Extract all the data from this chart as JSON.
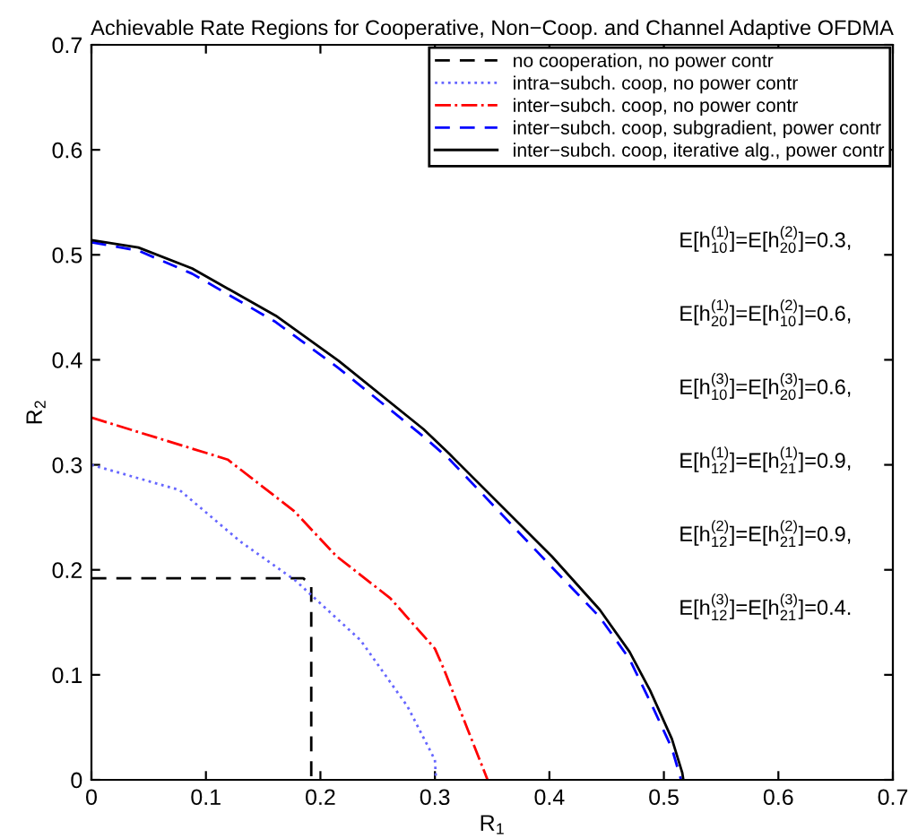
{
  "chart_data": {
    "type": "line",
    "title": "Achievable Rate Regions for Cooperative, Non−Coop. and Channel Adaptive OFDMA",
    "xlabel": "R$_{1}$",
    "ylabel": "R$_{2}$",
    "xlim": [
      0,
      0.7
    ],
    "ylim": [
      0,
      0.7
    ],
    "xticks": [
      0,
      0.1,
      0.2,
      0.3,
      0.4,
      0.5,
      0.6,
      0.7
    ],
    "yticks": [
      0,
      0.1,
      0.2,
      0.3,
      0.4,
      0.5,
      0.6,
      0.7
    ],
    "grid": false,
    "legend": "top right",
    "marker": "none",
    "series": [
      {
        "name": "no cooperation, no power contr",
        "color": "#000000",
        "line_style": "dashed",
        "x": [
          0,
          0.185,
          0.192,
          0.192
        ],
        "values": [
          0.192,
          0.192,
          0.185,
          0
        ]
      },
      {
        "name": "intra−subch. coop, no power contr",
        "color": "#6666ff",
        "line_style": "dotted",
        "x": [
          0,
          0.077,
          0.13,
          0.178,
          0.235,
          0.276,
          0.3,
          0.301
        ],
        "values": [
          0.3,
          0.276,
          0.227,
          0.19,
          0.133,
          0.07,
          0.019,
          0
        ]
      },
      {
        "name": "inter−subch. coop, no power contr",
        "color": "#ff0000",
        "line_style": "dashdot",
        "x": [
          0,
          0.119,
          0.177,
          0.214,
          0.261,
          0.3,
          0.308,
          0.329,
          0.346
        ],
        "values": [
          0.345,
          0.305,
          0.256,
          0.213,
          0.173,
          0.125,
          0.105,
          0.047,
          0
        ]
      },
      {
        "name": "inter−subch. coop, subgradient, power contr",
        "color": "#0000ff",
        "line_style": "dashed",
        "x": [
          0,
          0.041,
          0.088,
          0.161,
          0.216,
          0.29,
          0.313,
          0.4,
          0.444,
          0.47,
          0.49,
          0.507,
          0.515
        ],
        "values": [
          0.512,
          0.504,
          0.482,
          0.436,
          0.392,
          0.327,
          0.305,
          0.205,
          0.155,
          0.115,
          0.07,
          0.03,
          0
        ]
      },
      {
        "name": "inter−subch. coop, iterative alg., power contr",
        "color": "#000000",
        "line_style": "solid",
        "x": [
          0,
          0.041,
          0.088,
          0.161,
          0.216,
          0.29,
          0.313,
          0.402,
          0.444,
          0.47,
          0.488,
          0.507,
          0.516,
          0.517
        ],
        "values": [
          0.514,
          0.507,
          0.487,
          0.442,
          0.399,
          0.334,
          0.31,
          0.213,
          0.162,
          0.122,
          0.085,
          0.039,
          0.007,
          0
        ]
      }
    ],
    "annotations": [
      "E[h$^{(1)}$$_{10}$]=E[h$^{(2)}$$_{20}$]=0.3,",
      "E[h$^{(1)}$$_{20}$]=E[h$^{(2)}$$_{10}$]=0.6,",
      "E[h$^{(3)}$$_{10}$]=E[h$^{(3)}$$_{20}$]=0.6,",
      "E[h$^{(1)}$$_{12}$]=E[h$^{(1)}$$_{21}$]=0.9,",
      "E[h$^{(2)}$$_{12}$]=E[h$^{(2)}$$_{21}$]=0.9,",
      "E[h$^{(3)}$$_{12}$]=E[h$^{(3)}$$_{21}$]=0.4."
    ]
  }
}
